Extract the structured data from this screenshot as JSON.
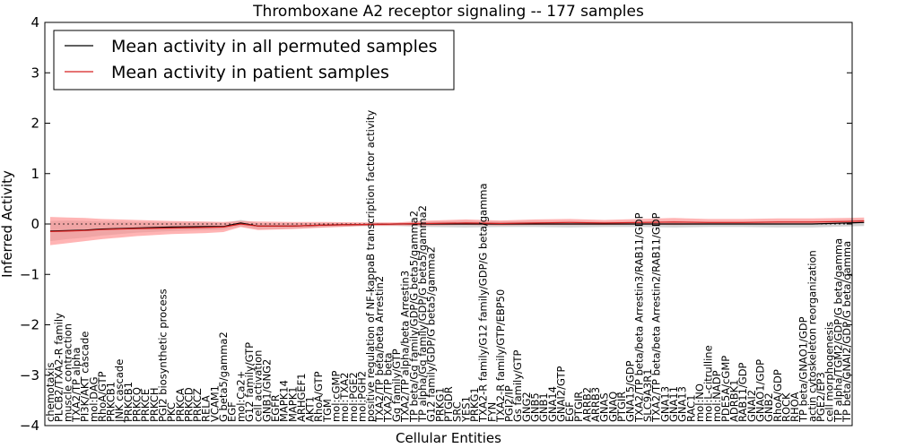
{
  "chart_data": {
    "type": "line",
    "title": "Thromboxane A2 receptor signaling -- 177 samples",
    "xlabel": "Cellular Entities",
    "ylabel": "Inferred Activity",
    "ylim": [
      -4,
      4
    ],
    "yticks": [
      -4,
      -3,
      -2,
      -1,
      0,
      1,
      2,
      3,
      4
    ],
    "legend_position": "top-left",
    "colors": {
      "permuted": "#000000",
      "patient": "#d62020",
      "patient_band": "#ff8c8c",
      "permuted_band": "#b0b0b0"
    },
    "categories": [
      "chemotaxis",
      "PLCB2/TXA2-R family",
      "muscle contraction",
      "TXA2/TP alpha",
      "PI3K/AKT cascade",
      "mol:DAG",
      "RhoA/GTP",
      "PRKCB1",
      "JNK cascade",
      "PRKCB1",
      "PRKCQ",
      "PRKCE",
      "PRKCH",
      "PGI2 biosynthetic process",
      "PKC",
      "PRKCA",
      "PRKCD",
      "PRKCZ",
      "RELA",
      "VCAM1",
      "G beta5/gamma2",
      "EGF",
      "mol:Ca2+",
      "G12 family/GTP",
      "cell activation",
      "GNB1/GNG2",
      "EGFR",
      "MAPK14",
      "MAPK1",
      "ARHGEF1",
      "AKT1",
      "RhoA/GTP",
      "TGM",
      "mol:cGMP",
      "mol:TXA2",
      "mol:PGE2",
      "mol:PGH2",
      "positive regulation of NF-kappaB transcription factor activity",
      "TXA2/TP beta/beta Arrestin2",
      "TXA2/TP beta",
      "Gq family/GTP",
      "TXA2/TP alpha/beta Arrestin3",
      "TP beta/Gq family/GDP/G beta5/gamma2",
      "TP alpha/Gq family/GDP/G beta5/gamma2",
      "G12 family/GDP/G beta5/gamma2",
      "PRKG1",
      "PTGDR",
      "SRC",
      "YES1",
      "PRKG1",
      "TXA2-R family/G12 family/GDP/G beta/gamma",
      "FYN",
      "TXA2-R family/GTP/EBP50",
      "PGI2/IP",
      "Gs family/GTP",
      "GNG2",
      "GNB5",
      "GNB1",
      "GNA14",
      "GNAI2/GTP",
      "EGF",
      "PTGIR",
      "ARRB2",
      "ARRB3",
      "GNAS",
      "GNAQ",
      "PTGIR",
      "GNA15/GDP",
      "TXA2/TP beta/beta Arrestin3/RAB11/GDP",
      "SLC9A3R1",
      "TXA2/TP beta/beta Arrestin2/RAB11/GDP",
      "GNA13",
      "GNA11",
      "GNA13",
      "RAC1",
      "mol:NO",
      "mol:L-citrulline",
      "mol:NADP",
      "PDE5A/cGMP",
      "ADRBK1",
      "RAB11/GDP",
      "GNAI2",
      "GNAO1/GDP",
      "GNB2",
      "RhoA/GDP",
      "ROCK",
      "RHOA",
      "TP beta/GNAO1/GDP",
      "actin cytoskeleton reorganization",
      "PGE2/EP3",
      "cell morphogenesis",
      "TP alpha/TGM2/GDP/G beta/gamma",
      "TP beta/GNAI2/GDP/G beta/gamma"
    ],
    "series": [
      {
        "name": "Mean activity in all permuted samples",
        "x": [
          0,
          2,
          4,
          6,
          8,
          10,
          14,
          18,
          20,
          22,
          24,
          28,
          32,
          36,
          40,
          44,
          48,
          52,
          56,
          60,
          64,
          68,
          72,
          76,
          80,
          84,
          88,
          92,
          94
        ],
        "y": [
          -0.14,
          -0.13,
          -0.12,
          -0.1,
          -0.09,
          -0.08,
          -0.06,
          -0.05,
          -0.05,
          0.02,
          -0.04,
          -0.04,
          -0.02,
          -0.01,
          0.0,
          0.0,
          0.0,
          0.0,
          0.0,
          0.0,
          0.0,
          0.0,
          0.0,
          0.0,
          0.0,
          0.0,
          0.0,
          0.02,
          0.03
        ],
        "lower": [
          -0.34,
          -0.3,
          -0.27,
          -0.23,
          -0.2,
          -0.17,
          -0.14,
          -0.12,
          -0.11,
          -0.05,
          -0.1,
          -0.09,
          -0.06,
          -0.04,
          -0.04,
          -0.06,
          -0.07,
          -0.06,
          -0.06,
          -0.07,
          -0.06,
          -0.06,
          -0.07,
          -0.06,
          -0.06,
          -0.07,
          -0.07,
          -0.05,
          -0.04
        ],
        "upper": [
          0.06,
          0.07,
          0.06,
          0.05,
          0.05,
          0.04,
          0.03,
          0.03,
          0.02,
          0.08,
          0.02,
          0.02,
          0.02,
          0.02,
          0.02,
          0.05,
          0.06,
          0.05,
          0.06,
          0.06,
          0.05,
          0.05,
          0.06,
          0.05,
          0.05,
          0.06,
          0.06,
          0.08,
          0.09
        ]
      },
      {
        "name": "Mean activity in patient samples",
        "x": [
          0,
          2,
          4,
          6,
          8,
          10,
          14,
          18,
          20,
          22,
          24,
          28,
          32,
          36,
          40,
          44,
          48,
          52,
          56,
          60,
          64,
          68,
          72,
          76,
          80,
          84,
          88,
          92,
          94
        ],
        "y": [
          -0.15,
          -0.14,
          -0.13,
          -0.11,
          -0.1,
          -0.09,
          -0.08,
          -0.07,
          -0.06,
          0.0,
          -0.04,
          -0.04,
          -0.02,
          -0.01,
          0.0,
          0.01,
          0.02,
          0.01,
          0.02,
          0.03,
          0.02,
          0.03,
          0.04,
          0.03,
          0.03,
          0.04,
          0.04,
          0.05,
          0.06
        ],
        "lower": [
          -0.42,
          -0.38,
          -0.34,
          -0.3,
          -0.27,
          -0.24,
          -0.2,
          -0.18,
          -0.16,
          -0.06,
          -0.12,
          -0.1,
          -0.07,
          -0.04,
          -0.03,
          -0.03,
          -0.02,
          -0.03,
          -0.02,
          -0.02,
          -0.02,
          -0.01,
          -0.02,
          -0.01,
          -0.01,
          -0.01,
          0.0,
          0.01,
          0.02
        ],
        "upper": [
          0.14,
          0.13,
          0.12,
          0.1,
          0.09,
          0.08,
          0.06,
          0.05,
          0.04,
          0.06,
          0.05,
          0.04,
          0.04,
          0.03,
          0.03,
          0.07,
          0.09,
          0.07,
          0.09,
          0.1,
          0.08,
          0.1,
          0.12,
          0.1,
          0.1,
          0.11,
          0.11,
          0.12,
          0.13
        ]
      }
    ]
  }
}
